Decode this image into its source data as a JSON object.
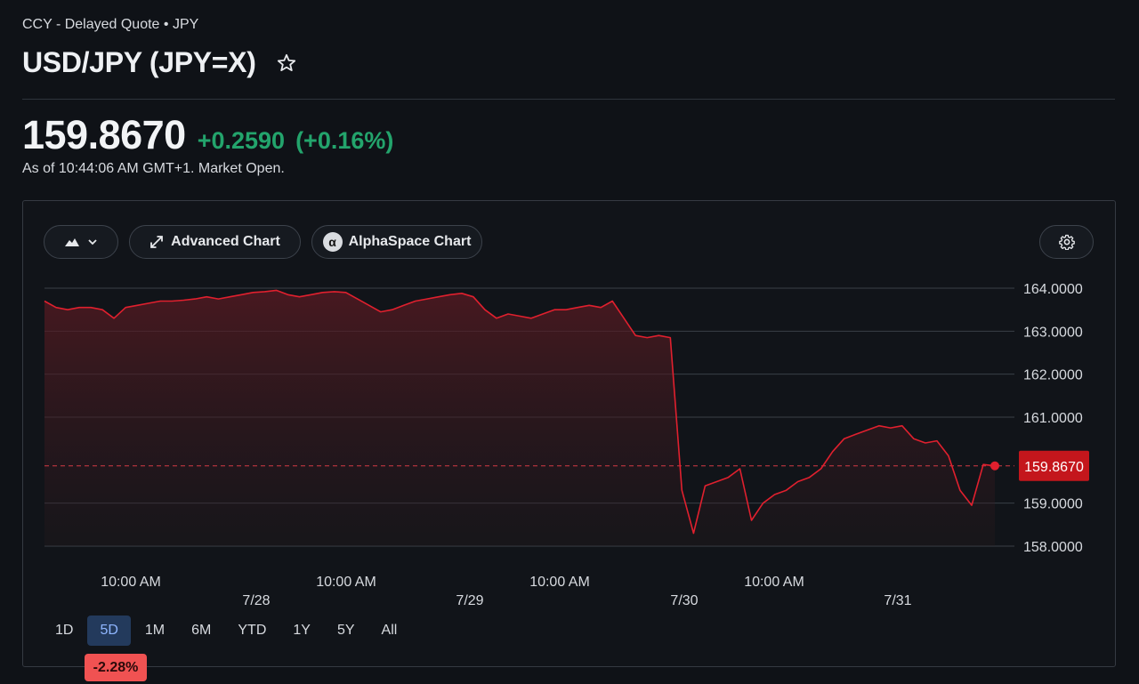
{
  "header": {
    "subtitle": "CCY - Delayed Quote • JPY",
    "title": "USD/JPY (JPY=X)"
  },
  "quote": {
    "price": "159.8670",
    "change": "+0.2590",
    "change_percent": "(+0.16%)",
    "as_of": "As of 10:44:06 AM GMT+1. Market Open.",
    "change_color": "#23a46c"
  },
  "toolbar": {
    "chart_type_icon": "mountain-chart-icon",
    "advanced_chart_label": "Advanced Chart",
    "alphaspace_chart_label": "AlphaSpace Chart",
    "alphaspace_badge": "α",
    "settings_icon": "gear-icon"
  },
  "ranges": [
    {
      "label": "1D",
      "active": false
    },
    {
      "label": "5D",
      "active": true
    },
    {
      "label": "1M",
      "active": false
    },
    {
      "label": "6M",
      "active": false
    },
    {
      "label": "YTD",
      "active": false
    },
    {
      "label": "1Y",
      "active": false
    },
    {
      "label": "5Y",
      "active": false
    },
    {
      "label": "All",
      "active": false
    }
  ],
  "range_performance": "-2.28%",
  "chart_data": {
    "type": "area",
    "y_tick_labels": [
      "164.0000",
      "163.0000",
      "162.0000",
      "161.0000",
      "159.0000",
      "158.0000"
    ],
    "y_ticks": [
      164,
      163,
      162,
      161,
      159,
      158
    ],
    "ylim": [
      158,
      164
    ],
    "x_time_labels": [
      "10:00 AM",
      "10:00 AM",
      "10:00 AM",
      "10:00 AM"
    ],
    "x_date_labels": [
      "7/28",
      "7/29",
      "7/30",
      "7/31"
    ],
    "current_value_label": "159.8670",
    "current_value": 159.867,
    "previous_close_line": 159.867,
    "line_color": "#e0202e",
    "series": [
      {
        "values": [
          163.7,
          163.55,
          163.5,
          163.55,
          163.55,
          163.5,
          163.3,
          163.55,
          163.6,
          163.65,
          163.7,
          163.7,
          163.72,
          163.75,
          163.8,
          163.75,
          163.8,
          163.85,
          163.9,
          163.92,
          163.95,
          163.85,
          163.8,
          163.85,
          163.9,
          163.92,
          163.9,
          163.75,
          163.6,
          163.45,
          163.5,
          163.6,
          163.7,
          163.75,
          163.8,
          163.85,
          163.88,
          163.8,
          163.5,
          163.3,
          163.4,
          163.35,
          163.3,
          163.4,
          163.5,
          163.5,
          163.55,
          163.6,
          163.55,
          163.7,
          163.3,
          162.9,
          162.85,
          162.9,
          162.85,
          159.3,
          158.3,
          159.4,
          159.5,
          159.6,
          159.8,
          158.6,
          159.0,
          159.2,
          159.3,
          159.5,
          159.6,
          159.8,
          160.2,
          160.5,
          160.6,
          160.7,
          160.8,
          160.75,
          160.8,
          160.5,
          160.4,
          160.45,
          160.1,
          159.3,
          158.95,
          159.9,
          159.867
        ]
      }
    ]
  }
}
